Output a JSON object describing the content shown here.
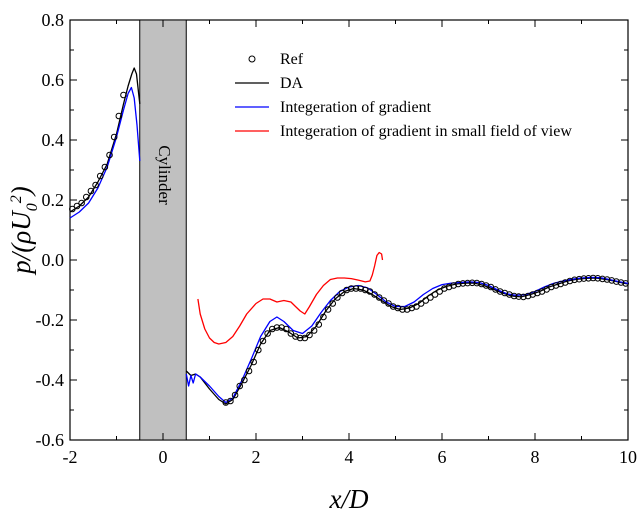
{
  "chart_data": {
    "type": "line",
    "xlabel": "x/D",
    "ylabel": "p/(ρU0²)",
    "xlim": [
      -2,
      10
    ],
    "ylim": [
      -0.6,
      0.8
    ],
    "xticks": [
      -2,
      0,
      2,
      4,
      6,
      8,
      10
    ],
    "xtick_labels": [
      "-2",
      "0",
      "2",
      "4",
      "6",
      "8",
      "10"
    ],
    "yticks": [
      -0.6,
      -0.4,
      -0.2,
      0.0,
      0.2,
      0.4,
      0.6,
      0.8
    ],
    "ytick_labels": [
      "-0.6",
      "-0.4",
      "-0.2",
      "0.0",
      "0.2",
      "0.4",
      "0.6",
      "0.8"
    ],
    "grid": false,
    "legend_position": "top-right",
    "annotation": {
      "text": "Cylinder",
      "x_range": [
        -0.5,
        0.5
      ],
      "fill": "#c0c0c0"
    },
    "series": [
      {
        "name": "Ref",
        "style": "markers",
        "color": "#000000",
        "points": [
          [
            -1.95,
            0.17
          ],
          [
            -1.85,
            0.18
          ],
          [
            -1.75,
            0.19
          ],
          [
            -1.65,
            0.21
          ],
          [
            -1.55,
            0.23
          ],
          [
            -1.45,
            0.25
          ],
          [
            -1.35,
            0.28
          ],
          [
            -1.25,
            0.31
          ],
          [
            -1.15,
            0.35
          ],
          [
            -1.05,
            0.41
          ],
          [
            -0.95,
            0.48
          ],
          [
            -0.85,
            0.55
          ],
          [
            1.35,
            -0.475
          ],
          [
            1.45,
            -0.47
          ],
          [
            1.55,
            -0.45
          ],
          [
            1.65,
            -0.42
          ],
          [
            1.75,
            -0.4
          ],
          [
            1.85,
            -0.37
          ],
          [
            1.95,
            -0.34
          ],
          [
            2.05,
            -0.3
          ],
          [
            2.15,
            -0.27
          ],
          [
            2.25,
            -0.245
          ],
          [
            2.35,
            -0.23
          ],
          [
            2.45,
            -0.225
          ],
          [
            2.55,
            -0.225
          ],
          [
            2.65,
            -0.23
          ],
          [
            2.75,
            -0.245
          ],
          [
            2.85,
            -0.255
          ],
          [
            2.95,
            -0.26
          ],
          [
            3.05,
            -0.26
          ],
          [
            3.15,
            -0.25
          ],
          [
            3.25,
            -0.235
          ],
          [
            3.35,
            -0.215
          ],
          [
            3.45,
            -0.19
          ],
          [
            3.55,
            -0.165
          ],
          [
            3.65,
            -0.145
          ],
          [
            3.75,
            -0.125
          ],
          [
            3.85,
            -0.11
          ],
          [
            3.95,
            -0.1
          ],
          [
            4.05,
            -0.095
          ],
          [
            4.15,
            -0.095
          ],
          [
            4.25,
            -0.095
          ],
          [
            4.35,
            -0.1
          ],
          [
            4.45,
            -0.105
          ],
          [
            4.55,
            -0.115
          ],
          [
            4.65,
            -0.125
          ],
          [
            4.75,
            -0.135
          ],
          [
            4.85,
            -0.145
          ],
          [
            4.95,
            -0.155
          ],
          [
            5.05,
            -0.16
          ],
          [
            5.15,
            -0.165
          ],
          [
            5.25,
            -0.165
          ],
          [
            5.35,
            -0.16
          ],
          [
            5.45,
            -0.155
          ],
          [
            5.55,
            -0.145
          ],
          [
            5.65,
            -0.135
          ],
          [
            5.75,
            -0.125
          ],
          [
            5.85,
            -0.115
          ],
          [
            5.95,
            -0.105
          ],
          [
            6.05,
            -0.095
          ],
          [
            6.15,
            -0.09
          ],
          [
            6.25,
            -0.085
          ],
          [
            6.35,
            -0.08
          ],
          [
            6.45,
            -0.078
          ],
          [
            6.55,
            -0.077
          ],
          [
            6.65,
            -0.076
          ],
          [
            6.75,
            -0.077
          ],
          [
            6.85,
            -0.08
          ],
          [
            6.95,
            -0.085
          ],
          [
            7.05,
            -0.09
          ],
          [
            7.15,
            -0.098
          ],
          [
            7.25,
            -0.105
          ],
          [
            7.35,
            -0.11
          ],
          [
            7.45,
            -0.115
          ],
          [
            7.55,
            -0.12
          ],
          [
            7.65,
            -0.122
          ],
          [
            7.75,
            -0.123
          ],
          [
            7.85,
            -0.12
          ],
          [
            7.95,
            -0.115
          ],
          [
            8.05,
            -0.11
          ],
          [
            8.15,
            -0.105
          ],
          [
            8.25,
            -0.098
          ],
          [
            8.35,
            -0.09
          ],
          [
            8.45,
            -0.085
          ],
          [
            8.55,
            -0.08
          ],
          [
            8.65,
            -0.075
          ],
          [
            8.75,
            -0.07
          ],
          [
            8.85,
            -0.066
          ],
          [
            8.95,
            -0.064
          ],
          [
            9.05,
            -0.062
          ],
          [
            9.15,
            -0.061
          ],
          [
            9.25,
            -0.06
          ],
          [
            9.35,
            -0.061
          ],
          [
            9.45,
            -0.063
          ],
          [
            9.55,
            -0.065
          ],
          [
            9.65,
            -0.068
          ],
          [
            9.75,
            -0.072
          ],
          [
            9.85,
            -0.075
          ],
          [
            9.95,
            -0.078
          ]
        ]
      },
      {
        "name": "DA",
        "style": "line",
        "color": "#000000",
        "segments": [
          [
            [
              -2.0,
              0.16
            ],
            [
              -1.8,
              0.18
            ],
            [
              -1.6,
              0.21
            ],
            [
              -1.4,
              0.26
            ],
            [
              -1.2,
              0.32
            ],
            [
              -1.0,
              0.42
            ],
            [
              -0.85,
              0.52
            ],
            [
              -0.75,
              0.58
            ],
            [
              -0.67,
              0.62
            ],
            [
              -0.62,
              0.64
            ],
            [
              -0.57,
              0.62
            ],
            [
              -0.5,
              0.52
            ]
          ],
          [
            [
              0.5,
              -0.37
            ],
            [
              0.6,
              -0.385
            ],
            [
              0.7,
              -0.38
            ],
            [
              0.8,
              -0.39
            ],
            [
              1.0,
              -0.43
            ],
            [
              1.2,
              -0.465
            ],
            [
              1.35,
              -0.48
            ],
            [
              1.5,
              -0.465
            ],
            [
              1.7,
              -0.41
            ],
            [
              1.9,
              -0.35
            ],
            [
              2.1,
              -0.28
            ],
            [
              2.3,
              -0.235
            ],
            [
              2.5,
              -0.225
            ],
            [
              2.7,
              -0.24
            ],
            [
              2.9,
              -0.26
            ],
            [
              3.1,
              -0.255
            ],
            [
              3.3,
              -0.22
            ],
            [
              3.5,
              -0.17
            ],
            [
              3.7,
              -0.13
            ],
            [
              3.9,
              -0.105
            ],
            [
              4.1,
              -0.095
            ],
            [
              4.3,
              -0.1
            ],
            [
              4.5,
              -0.115
            ],
            [
              4.7,
              -0.135
            ],
            [
              4.9,
              -0.155
            ],
            [
              5.1,
              -0.165
            ],
            [
              5.3,
              -0.16
            ],
            [
              5.5,
              -0.145
            ],
            [
              5.7,
              -0.12
            ],
            [
              5.9,
              -0.1
            ],
            [
              6.1,
              -0.088
            ],
            [
              6.3,
              -0.08
            ],
            [
              6.5,
              -0.077
            ],
            [
              6.7,
              -0.077
            ],
            [
              6.9,
              -0.085
            ],
            [
              7.1,
              -0.097
            ],
            [
              7.3,
              -0.11
            ],
            [
              7.5,
              -0.12
            ],
            [
              7.7,
              -0.123
            ],
            [
              7.9,
              -0.115
            ],
            [
              8.1,
              -0.105
            ],
            [
              8.3,
              -0.09
            ],
            [
              8.5,
              -0.08
            ],
            [
              8.7,
              -0.07
            ],
            [
              8.9,
              -0.064
            ],
            [
              9.1,
              -0.061
            ],
            [
              9.3,
              -0.06
            ],
            [
              9.5,
              -0.064
            ],
            [
              9.7,
              -0.07
            ],
            [
              9.9,
              -0.077
            ],
            [
              10.0,
              -0.08
            ]
          ]
        ]
      },
      {
        "name": "Integeration of gradient",
        "style": "line",
        "color": "#0000ff",
        "segments": [
          [
            [
              -2.0,
              0.14
            ],
            [
              -1.8,
              0.16
            ],
            [
              -1.6,
              0.19
            ],
            [
              -1.4,
              0.24
            ],
            [
              -1.2,
              0.31
            ],
            [
              -1.0,
              0.41
            ],
            [
              -0.85,
              0.5
            ],
            [
              -0.75,
              0.555
            ],
            [
              -0.68,
              0.575
            ],
            [
              -0.62,
              0.54
            ],
            [
              -0.56,
              0.45
            ],
            [
              -0.5,
              0.33
            ]
          ],
          [
            [
              0.5,
              -0.38
            ],
            [
              0.55,
              -0.42
            ],
            [
              0.6,
              -0.385
            ],
            [
              0.65,
              -0.41
            ],
            [
              0.7,
              -0.38
            ],
            [
              0.8,
              -0.39
            ],
            [
              1.0,
              -0.42
            ],
            [
              1.2,
              -0.455
            ],
            [
              1.35,
              -0.475
            ],
            [
              1.5,
              -0.46
            ],
            [
              1.7,
              -0.4
            ],
            [
              1.9,
              -0.33
            ],
            [
              2.1,
              -0.255
            ],
            [
              2.3,
              -0.205
            ],
            [
              2.45,
              -0.19
            ],
            [
              2.6,
              -0.205
            ],
            [
              2.8,
              -0.235
            ],
            [
              3.0,
              -0.245
            ],
            [
              3.2,
              -0.22
            ],
            [
              3.4,
              -0.175
            ],
            [
              3.6,
              -0.135
            ],
            [
              3.8,
              -0.105
            ],
            [
              4.0,
              -0.09
            ],
            [
              4.2,
              -0.085
            ],
            [
              4.4,
              -0.093
            ],
            [
              4.6,
              -0.115
            ],
            [
              4.8,
              -0.14
            ],
            [
              5.0,
              -0.155
            ],
            [
              5.2,
              -0.155
            ],
            [
              5.4,
              -0.14
            ],
            [
              5.6,
              -0.115
            ],
            [
              5.8,
              -0.095
            ],
            [
              6.0,
              -0.082
            ],
            [
              6.2,
              -0.077
            ],
            [
              6.4,
              -0.075
            ],
            [
              6.6,
              -0.073
            ],
            [
              6.8,
              -0.075
            ],
            [
              7.0,
              -0.085
            ],
            [
              7.2,
              -0.1
            ],
            [
              7.4,
              -0.113
            ],
            [
              7.6,
              -0.118
            ],
            [
              7.8,
              -0.115
            ],
            [
              8.0,
              -0.105
            ],
            [
              8.2,
              -0.09
            ],
            [
              8.4,
              -0.078
            ],
            [
              8.6,
              -0.07
            ],
            [
              8.8,
              -0.064
            ],
            [
              9.0,
              -0.06
            ],
            [
              9.2,
              -0.058
            ],
            [
              9.4,
              -0.059
            ],
            [
              9.6,
              -0.065
            ],
            [
              9.8,
              -0.072
            ],
            [
              10.0,
              -0.078
            ]
          ]
        ]
      },
      {
        "name": "Integeration of gradient in small field of view",
        "style": "line",
        "color": "#ff0000",
        "segments": [
          [
            [
              0.75,
              -0.13
            ],
            [
              0.8,
              -0.18
            ],
            [
              0.9,
              -0.23
            ],
            [
              1.0,
              -0.26
            ],
            [
              1.1,
              -0.275
            ],
            [
              1.2,
              -0.28
            ],
            [
              1.35,
              -0.275
            ],
            [
              1.5,
              -0.255
            ],
            [
              1.65,
              -0.22
            ],
            [
              1.8,
              -0.18
            ],
            [
              2.0,
              -0.145
            ],
            [
              2.15,
              -0.13
            ],
            [
              2.3,
              -0.13
            ],
            [
              2.45,
              -0.14
            ],
            [
              2.6,
              -0.135
            ],
            [
              2.75,
              -0.14
            ],
            [
              2.85,
              -0.155
            ],
            [
              2.95,
              -0.17
            ],
            [
              3.05,
              -0.18
            ],
            [
              3.15,
              -0.155
            ],
            [
              3.3,
              -0.115
            ],
            [
              3.45,
              -0.085
            ],
            [
              3.6,
              -0.065
            ],
            [
              3.75,
              -0.06
            ],
            [
              3.9,
              -0.06
            ],
            [
              4.05,
              -0.062
            ],
            [
              4.2,
              -0.067
            ],
            [
              4.35,
              -0.073
            ],
            [
              4.45,
              -0.07
            ],
            [
              4.5,
              -0.05
            ],
            [
              4.55,
              -0.02
            ],
            [
              4.6,
              0.015
            ],
            [
              4.65,
              0.025
            ],
            [
              4.7,
              0.02
            ],
            [
              4.72,
              0.0
            ]
          ]
        ]
      }
    ]
  }
}
